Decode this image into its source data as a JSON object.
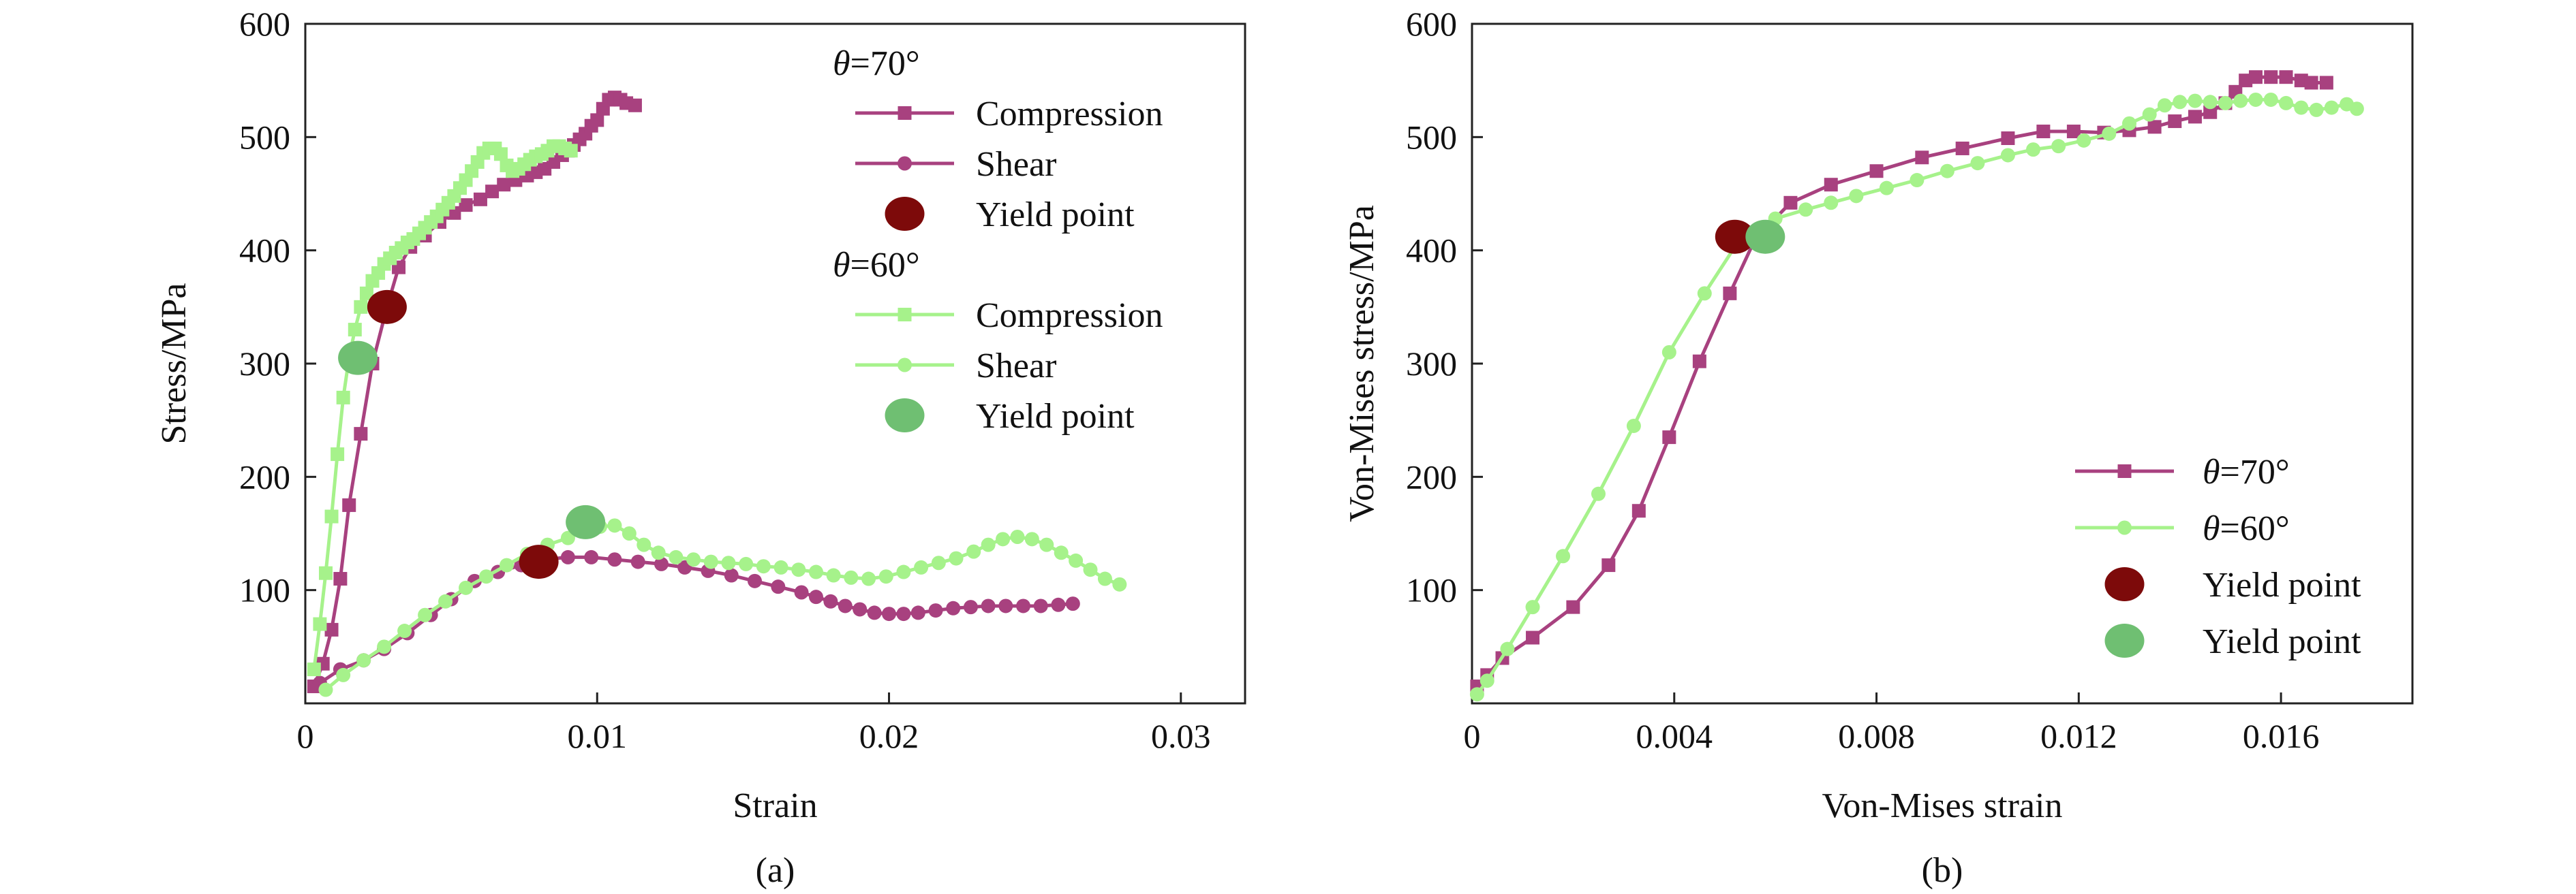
{
  "colors": {
    "magenta": "#a8417f",
    "lightgreen": "#a6f28b",
    "darkred": "#7d0a0a",
    "midgreen": "#6fbf72",
    "axis": "#222222"
  },
  "chart_data": [
    {
      "type": "line",
      "panel_label": "(a)",
      "xlabel": "Strain",
      "ylabel": "Stress/MPa",
      "xlim": [
        0,
        0.0322
      ],
      "ylim": [
        0,
        600
      ],
      "xticks": [
        0,
        0.01,
        0.02,
        0.03
      ],
      "xtick_labels": [
        "0",
        "0.01",
        "0.02",
        "0.03"
      ],
      "yticks": [
        100,
        200,
        300,
        400,
        500,
        600
      ],
      "ytick_labels": [
        "100",
        "200",
        "300",
        "400",
        "500",
        "600"
      ],
      "grid": false,
      "legend_position": "top-right",
      "legend": [
        {
          "group_title_var": "θ",
          "group_title_rest": "=70°",
          "entries": [
            {
              "label": "Compression",
              "color": "#a8417f",
              "marker": "square"
            },
            {
              "label": "Shear",
              "color": "#a8417f",
              "marker": "circle"
            },
            {
              "label": "Yield point",
              "color": "#7d0a0a",
              "marker": "ellipse"
            }
          ]
        },
        {
          "group_title_var": "θ",
          "group_title_rest": "=60°",
          "entries": [
            {
              "label": "Compression",
              "color": "#a6f28b",
              "marker": "square"
            },
            {
              "label": "Shear",
              "color": "#a6f28b",
              "marker": "circle"
            },
            {
              "label": "Yield point",
              "color": "#6fbf72",
              "marker": "ellipse"
            }
          ]
        }
      ],
      "series": [
        {
          "name": "Compression",
          "group": "θ=70°",
          "color": "#a8417f",
          "marker": "square",
          "x": [
            0.0003,
            0.0006,
            0.0009,
            0.0012,
            0.0015,
            0.0019,
            0.0023,
            0.0028,
            0.0032,
            0.0036,
            0.0041,
            0.0046,
            0.0051,
            0.0055,
            0.006,
            0.0064,
            0.0068,
            0.0072,
            0.0076,
            0.0079,
            0.0082,
            0.0085,
            0.0088,
            0.009,
            0.0092,
            0.0094,
            0.0096,
            0.0098,
            0.01,
            0.0102,
            0.0104,
            0.0106,
            0.0108,
            0.011,
            0.0113
          ],
          "y": [
            15,
            35,
            65,
            110,
            175,
            238,
            300,
            350,
            385,
            403,
            413,
            425,
            433,
            440,
            445,
            452,
            458,
            462,
            466,
            469,
            472,
            478,
            484,
            488,
            493,
            498,
            503,
            510,
            515,
            525,
            533,
            535,
            533,
            530,
            528
          ]
        },
        {
          "name": "Shear",
          "group": "θ=70°",
          "color": "#a8417f",
          "marker": "circle",
          "x": [
            0.0005,
            0.0012,
            0.002,
            0.0027,
            0.0035,
            0.0043,
            0.005,
            0.0058,
            0.0066,
            0.0074,
            0.0082,
            0.009,
            0.0098,
            0.0106,
            0.0114,
            0.0122,
            0.013,
            0.0138,
            0.0146,
            0.0154,
            0.0162,
            0.017,
            0.0175,
            0.018,
            0.0185,
            0.019,
            0.0195,
            0.02,
            0.0205,
            0.021,
            0.0216,
            0.0222,
            0.0228,
            0.0234,
            0.024,
            0.0246,
            0.0252,
            0.0258,
            0.0263
          ],
          "y": [
            18,
            30,
            38,
            48,
            62,
            78,
            92,
            108,
            116,
            122,
            127,
            129,
            129,
            127,
            125,
            123,
            120,
            117,
            113,
            108,
            103,
            98,
            94,
            90,
            86,
            83,
            80,
            79,
            79,
            80,
            82,
            84,
            85,
            86,
            86,
            86,
            86,
            87,
            88
          ]
        },
        {
          "name": "Compression",
          "group": "θ=60°",
          "color": "#a6f28b",
          "marker": "square",
          "x": [
            0.0003,
            0.0005,
            0.0007,
            0.0009,
            0.0011,
            0.0013,
            0.0015,
            0.0017,
            0.0019,
            0.0021,
            0.0023,
            0.0025,
            0.0027,
            0.0029,
            0.0031,
            0.0033,
            0.0035,
            0.0037,
            0.0039,
            0.0041,
            0.0043,
            0.0045,
            0.0047,
            0.0049,
            0.0051,
            0.0053,
            0.0055,
            0.0057,
            0.0059,
            0.0061,
            0.0063,
            0.0065,
            0.0067,
            0.0069,
            0.0071,
            0.0073,
            0.0075,
            0.0077,
            0.0079,
            0.0081,
            0.0083,
            0.0085,
            0.0087,
            0.0089,
            0.0091
          ],
          "y": [
            30,
            70,
            115,
            165,
            220,
            270,
            305,
            330,
            350,
            362,
            373,
            380,
            388,
            393,
            398,
            402,
            407,
            410,
            415,
            420,
            425,
            430,
            436,
            442,
            448,
            455,
            462,
            470,
            478,
            486,
            490,
            490,
            485,
            475,
            470,
            472,
            476,
            480,
            483,
            485,
            488,
            492,
            492,
            490,
            488
          ]
        },
        {
          "name": "Shear",
          "group": "θ=60°",
          "color": "#a6f28b",
          "marker": "circle",
          "x": [
            0.0007,
            0.0013,
            0.002,
            0.0027,
            0.0034,
            0.0041,
            0.0048,
            0.0055,
            0.0062,
            0.0069,
            0.0076,
            0.0083,
            0.009,
            0.0096,
            0.0101,
            0.0106,
            0.0111,
            0.0116,
            0.0121,
            0.0127,
            0.0133,
            0.0139,
            0.0145,
            0.0151,
            0.0157,
            0.0163,
            0.0169,
            0.0175,
            0.0181,
            0.0187,
            0.0193,
            0.0199,
            0.0205,
            0.0211,
            0.0217,
            0.0223,
            0.0229,
            0.0234,
            0.0239,
            0.0244,
            0.0249,
            0.0254,
            0.0259,
            0.0264,
            0.0269,
            0.0274,
            0.0279
          ],
          "y": [
            12,
            25,
            38,
            50,
            64,
            78,
            90,
            102,
            112,
            122,
            132,
            140,
            146,
            152,
            156,
            157,
            150,
            140,
            133,
            129,
            127,
            125,
            124,
            123,
            121,
            120,
            118,
            116,
            113,
            111,
            110,
            112,
            116,
            120,
            124,
            128,
            134,
            140,
            145,
            147,
            145,
            140,
            133,
            126,
            118,
            110,
            105
          ]
        }
      ],
      "yield_points": [
        {
          "label": "Yield point",
          "group": "θ=70°",
          "color": "#7d0a0a",
          "points": [
            [
              0.0028,
              350
            ],
            [
              0.008,
              125
            ]
          ]
        },
        {
          "label": "Yield point",
          "group": "θ=60°",
          "color": "#6fbf72",
          "points": [
            [
              0.0018,
              305
            ],
            [
              0.0096,
              160
            ]
          ]
        }
      ]
    },
    {
      "type": "line",
      "panel_label": "(b)",
      "xlabel": "Von-Mises strain",
      "ylabel": "Von-Mises stress/MPa",
      "xlim": [
        0,
        0.0186
      ],
      "ylim": [
        0,
        600
      ],
      "xticks": [
        0,
        0.004,
        0.008,
        0.012,
        0.016
      ],
      "xtick_labels": [
        "0",
        "0.004",
        "0.008",
        "0.012",
        "0.016"
      ],
      "yticks": [
        100,
        200,
        300,
        400,
        500,
        600
      ],
      "ytick_labels": [
        "100",
        "200",
        "300",
        "400",
        "500",
        "600"
      ],
      "grid": false,
      "legend_position": "bottom-right",
      "legend": [
        {
          "entries": [
            {
              "label_var": "θ",
              "label_rest": "=70°",
              "color": "#a8417f",
              "marker": "square"
            },
            {
              "label_var": "θ",
              "label_rest": "=60°",
              "color": "#a6f28b",
              "marker": "circle"
            },
            {
              "label": "Yield point",
              "color": "#7d0a0a",
              "marker": "ellipse"
            },
            {
              "label": "Yield point",
              "color": "#6fbf72",
              "marker": "ellipse"
            }
          ]
        }
      ],
      "series": [
        {
          "name": "θ=70°",
          "color": "#a8417f",
          "marker": "square",
          "x": [
            0.0001,
            0.0003,
            0.0006,
            0.0012,
            0.002,
            0.0027,
            0.0033,
            0.0039,
            0.0045,
            0.0051,
            0.0056,
            0.0063,
            0.0071,
            0.008,
            0.0089,
            0.0097,
            0.0106,
            0.0113,
            0.0119,
            0.0125,
            0.013,
            0.0135,
            0.0139,
            0.0143,
            0.0146,
            0.0149,
            0.0151,
            0.0153,
            0.0155,
            0.0158,
            0.0161,
            0.0164,
            0.0166,
            0.0169
          ],
          "y": [
            15,
            25,
            40,
            58,
            85,
            122,
            170,
            235,
            302,
            362,
            410,
            442,
            458,
            470,
            482,
            490,
            499,
            505,
            505,
            504,
            506,
            509,
            514,
            518,
            522,
            530,
            540,
            550,
            553,
            553,
            553,
            550,
            548,
            548
          ]
        },
        {
          "name": "θ=60°",
          "color": "#a6f28b",
          "marker": "circle",
          "x": [
            0.0001,
            0.0003,
            0.0007,
            0.0012,
            0.0018,
            0.0025,
            0.0032,
            0.0039,
            0.0046,
            0.0053,
            0.006,
            0.0066,
            0.0071,
            0.0076,
            0.0082,
            0.0088,
            0.0094,
            0.01,
            0.0106,
            0.0111,
            0.0116,
            0.0121,
            0.0126,
            0.013,
            0.0134,
            0.0137,
            0.014,
            0.0143,
            0.0146,
            0.0149,
            0.0152,
            0.0155,
            0.0158,
            0.0161,
            0.0164,
            0.0167,
            0.017,
            0.0173,
            0.0175
          ],
          "y": [
            8,
            20,
            48,
            85,
            130,
            185,
            245,
            310,
            362,
            410,
            428,
            436,
            442,
            448,
            455,
            462,
            470,
            477,
            484,
            489,
            492,
            497,
            503,
            512,
            520,
            528,
            531,
            532,
            531,
            530,
            532,
            533,
            533,
            530,
            526,
            524,
            526,
            529,
            525
          ]
        }
      ],
      "yield_points": [
        {
          "label": "Yield point",
          "series": "θ=70°",
          "color": "#7d0a0a",
          "points": [
            [
              0.0052,
              412
            ]
          ]
        },
        {
          "label": "Yield point",
          "series": "θ=60°",
          "color": "#6fbf72",
          "points": [
            [
              0.0058,
              412
            ]
          ]
        }
      ]
    }
  ]
}
